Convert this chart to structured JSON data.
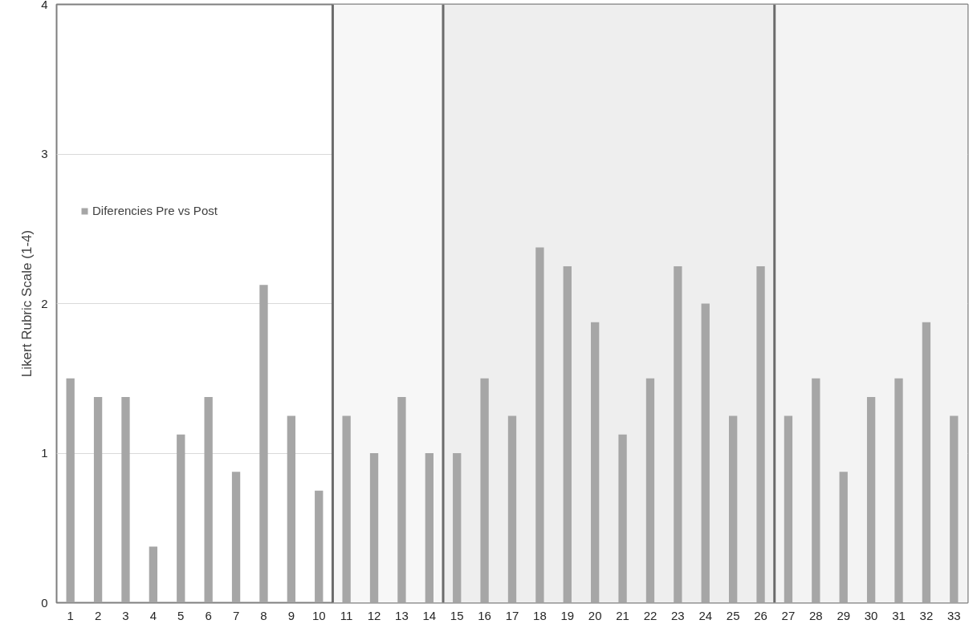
{
  "chart_data": {
    "type": "bar",
    "ylabel": "Likert Rubric Scale (1-4)",
    "x": [
      1,
      2,
      3,
      4,
      5,
      6,
      7,
      8,
      9,
      10,
      11,
      12,
      13,
      14,
      15,
      16,
      17,
      18,
      19,
      20,
      21,
      22,
      23,
      24,
      25,
      26,
      27,
      28,
      29,
      30,
      31,
      32,
      33
    ],
    "series": [
      {
        "name": "Diferencies Pre vs Post",
        "color": "#a6a6a6",
        "values": [
          1.5,
          1.375,
          1.375,
          0.375,
          1.125,
          1.375,
          0.875,
          2.125,
          1.25,
          0.75,
          1.25,
          1.0,
          1.375,
          1.0,
          1.0,
          1.5,
          1.25,
          2.375,
          2.25,
          1.875,
          1.125,
          1.5,
          2.25,
          2.0,
          1.25,
          2.25,
          1.25,
          1.5,
          0.875,
          1.375,
          1.5,
          1.875,
          1.25
        ]
      }
    ],
    "xlim": [
      0.5,
      33.5
    ],
    "xticks": [
      1,
      2,
      3,
      4,
      5,
      6,
      7,
      8,
      9,
      10,
      11,
      12,
      13,
      14,
      15,
      16,
      17,
      18,
      19,
      20,
      21,
      22,
      23,
      24,
      25,
      26,
      27,
      28,
      29,
      30,
      31,
      32,
      33
    ],
    "ylim": [
      0,
      4
    ],
    "yticks": [
      0,
      1,
      2,
      3,
      4
    ],
    "grid": "y",
    "legend": "top left",
    "bands": [
      {
        "axis": "x",
        "from": 10.5,
        "to": 14.5,
        "color": "#f7f7f7"
      },
      {
        "axis": "x",
        "from": 14.5,
        "to": 26.5,
        "color": "#eeeeee"
      },
      {
        "axis": "x",
        "from": 26.5,
        "to": 33.5,
        "color": "#f3f3f3"
      }
    ],
    "ref_lines": [
      {
        "axis": "x",
        "value": 10.5,
        "color": "#6b6b6b"
      },
      {
        "axis": "x",
        "value": 14.5,
        "color": "#6b6b6b"
      },
      {
        "axis": "x",
        "value": 26.5,
        "color": "#6b6b6b"
      }
    ]
  }
}
